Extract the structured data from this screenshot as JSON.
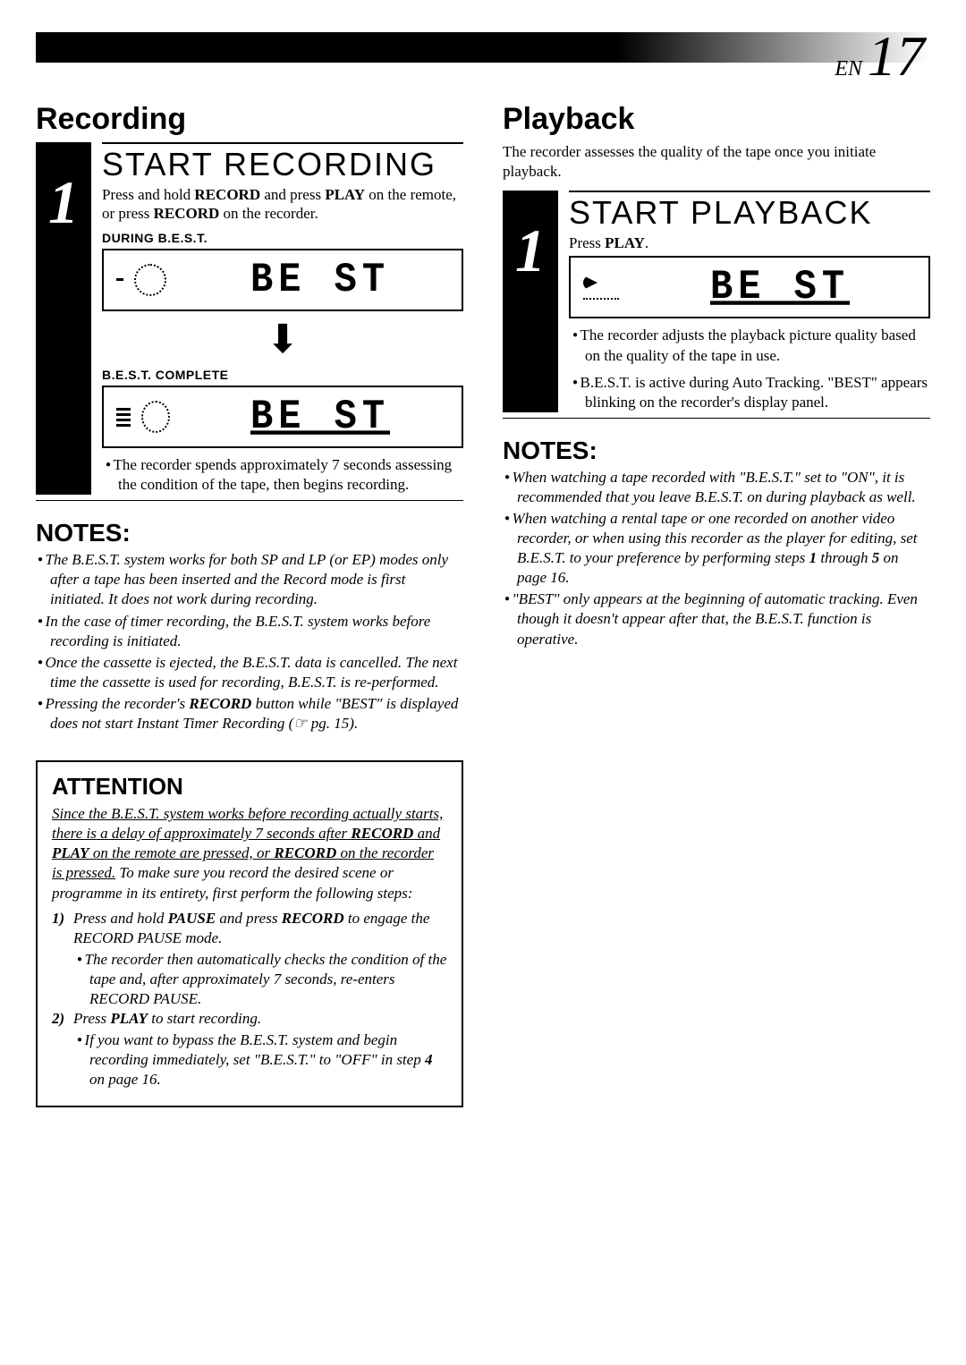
{
  "page": {
    "en": "EN",
    "number": "17"
  },
  "left": {
    "heading": "Recording",
    "stepNum": "1",
    "stepTitle": "START RECORDING",
    "instruction1a": "Press and hold ",
    "instruction1b": "RECORD",
    "instruction1c": " and press ",
    "instruction1d": "PLAY",
    "instruction1e": " on the remote, or press ",
    "instruction1f": "RECORD",
    "instruction1g": " on the recorder.",
    "duringLabel": "DURING B.E.S.T.",
    "segText": "BE ST",
    "completeLabel": "B.E.S.T. COMPLETE",
    "segText2": "BE ST",
    "spendsNote": "The recorder spends approximately 7 seconds assessing the condition of the tape, then begins recording.",
    "notesHead": "NOTES:",
    "notes": [
      "The B.E.S.T. system works for both SP and LP (or EP) modes only after a tape has been inserted and the Record mode is first initiated. It does not work during recording.",
      "In the case of timer recording, the B.E.S.T. system works before recording is initiated.",
      "Once the cassette is ejected, the B.E.S.T. data is cancelled. The next time the cassette is used for recording, B.E.S.T. is re-performed.",
      "Pressing the recorder's <b>RECORD</b> button while \"BEST\" is displayed does not start Instant Timer Recording (☞ pg. 15)."
    ],
    "attnTitle": "ATTENTION",
    "attnIntro1": "Since the B.E.S.T. system works before recording actually starts, there is a delay of approximately 7 seconds after ",
    "attnIntro2": "RECORD",
    "attnIntro3": " and ",
    "attnIntro4": "PLAY",
    "attnIntro5": " on the remote are pressed, or ",
    "attnIntro6": "RECORD",
    "attnIntro7": " on the recorder is pressed.",
    "attnIntroRest": " To make sure you record the desired scene or programme in its entirety, first perform the following steps:",
    "attnStep1n": "1)",
    "attnStep1a": "Press and hold ",
    "attnStep1b": "PAUSE",
    "attnStep1c": " and press ",
    "attnStep1d": "RECORD",
    "attnStep1e": " to engage the RECORD PAUSE mode.",
    "attnStep1Sub": "The recorder then automatically checks the condition of the tape and, after approximately 7 seconds, re-enters RECORD PAUSE.",
    "attnStep2n": "2)",
    "attnStep2a": "Press ",
    "attnStep2b": "PLAY",
    "attnStep2c": " to start recording.",
    "attnStep2Sub": "If you want to bypass the B.E.S.T. system and begin recording immediately, set \"B.E.S.T.\" to \"OFF\" in step <b>4</b> on page 16."
  },
  "right": {
    "heading": "Playback",
    "intro": "The recorder assesses the quality of the tape once you initiate playback.",
    "stepNum": "1",
    "stepTitle": "START PLAYBACK",
    "pressA": "Press ",
    "pressB": "PLAY",
    "pressC": ".",
    "segText": "BE ST",
    "sub1": "The recorder adjusts the playback picture quality based on the quality of the tape in use.",
    "sub2": "B.E.S.T. is active during Auto Tracking. \"BEST\" appears blinking on the recorder's display panel.",
    "notesHead": "NOTES:",
    "notes": [
      "When watching a tape recorded with \"B.E.S.T.\" set to \"ON\", it is recommended that you leave B.E.S.T. on during playback as well.",
      "When watching a rental tape or one recorded on another video recorder, or when using this recorder as the player for editing, set B.E.S.T. to your preference by performing steps <b>1</b> through <b>5</b> on page 16.",
      "\"BEST\" only appears at the beginning of automatic tracking. Even though it doesn't appear after that, the B.E.S.T. function is operative."
    ]
  }
}
